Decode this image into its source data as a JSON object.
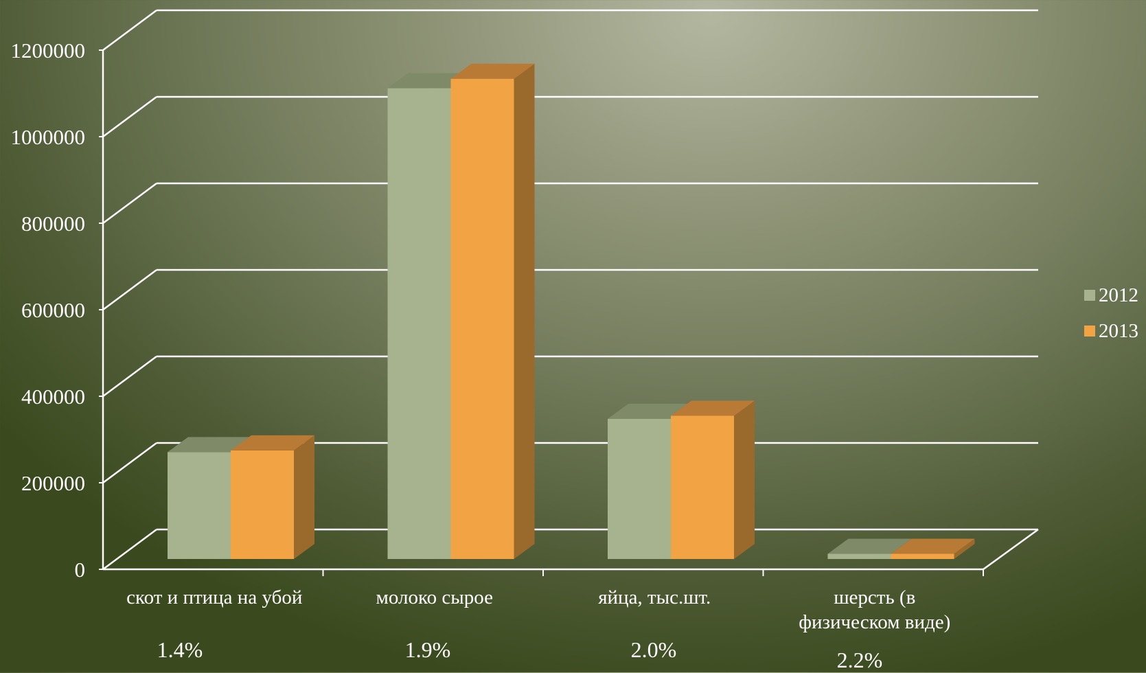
{
  "chart_data": {
    "type": "bar",
    "style": "3d-clustered-column",
    "categories": [
      [
        "скот и птица на убой"
      ],
      [
        "молоко сырое"
      ],
      [
        "яйца, тыс.шт."
      ],
      [
        "шерсть (в",
        "физическом виде)"
      ]
    ],
    "series": [
      {
        "name": "2012",
        "values": [
          247000,
          1088000,
          324000,
          12000
        ],
        "color": "#a6b38e",
        "top_color": "#7e8a68"
      },
      {
        "name": "2013",
        "values": [
          251000,
          1110000,
          331000,
          12000
        ],
        "color": "#f2a445",
        "top_color": "#b97a35",
        "side_color": "#9a6a2d"
      }
    ],
    "yticks": [
      "0",
      "200000",
      "400000",
      "600000",
      "800000",
      "1000000",
      "1200000"
    ],
    "ylim": [
      0,
      1200000
    ],
    "grid": true,
    "legend_position": "right",
    "growth_labels": [
      "1.4%",
      "1.9%",
      "2.0%",
      "2.2%"
    ]
  }
}
